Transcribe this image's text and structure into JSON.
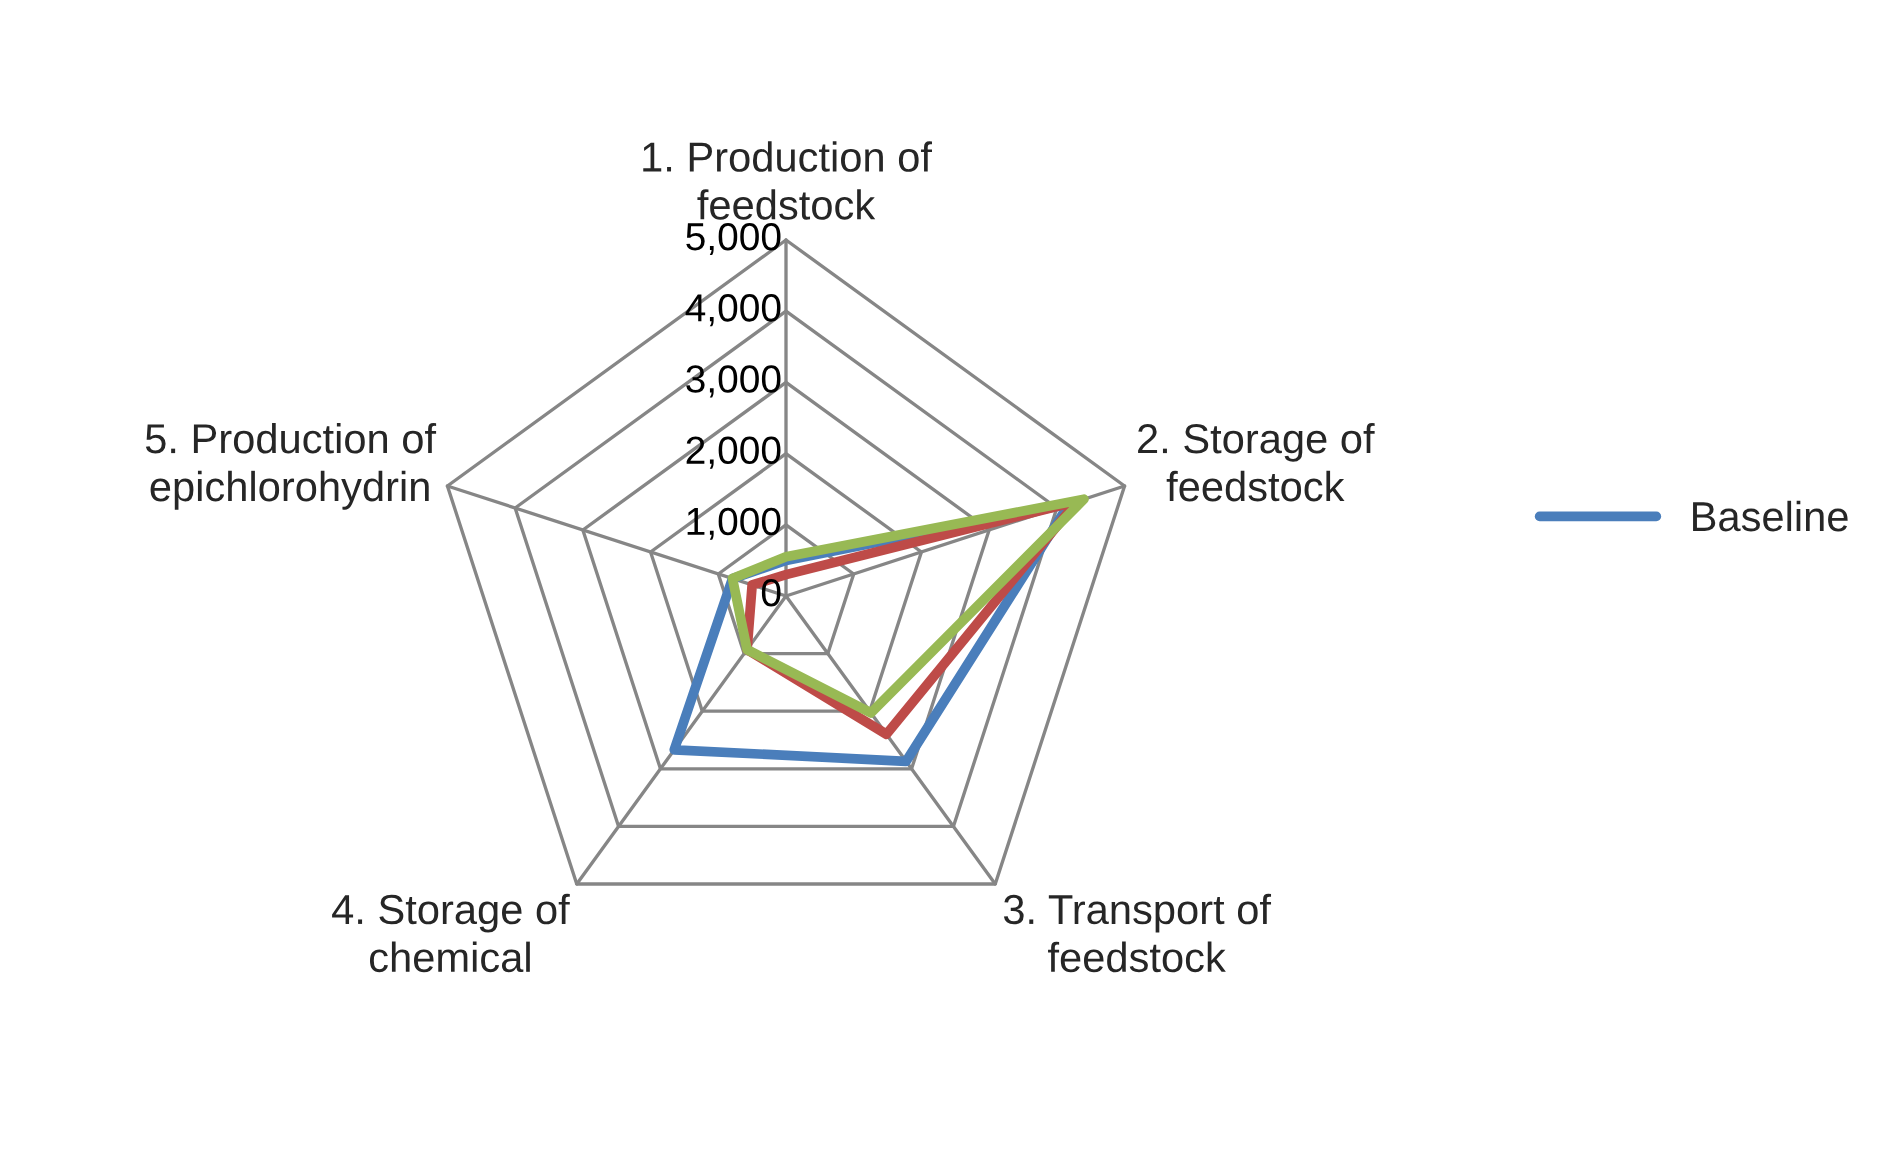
{
  "chart_data": {
    "type": "radar",
    "categories": [
      "1. Production of\nfeedstock",
      "2. Storage of\nfeedstock",
      "3. Transport of\nfeedstock",
      "4. Storage of\nchemical",
      "5. Production of\nepichlorohydrin"
    ],
    "series": [
      {
        "name": "Baseline",
        "color": "#4a7ebb",
        "values": [
          500,
          4180,
          2870,
          2670,
          790
        ]
      },
      {
        "color": "#be4b48",
        "values": [
          300,
          4300,
          2400,
          930,
          500
        ]
      },
      {
        "color": "#98b954",
        "values": [
          550,
          4400,
          2030,
          930,
          790
        ]
      }
    ],
    "ylim": [
      0,
      5000
    ],
    "yticks": [
      {
        "value": 0,
        "label": "0"
      },
      {
        "value": 1000,
        "label": "1,000"
      },
      {
        "value": 2000,
        "label": "2,000"
      },
      {
        "value": 3000,
        "label": "3,000"
      },
      {
        "value": 4000,
        "label": "4,000"
      },
      {
        "value": 5000,
        "label": "5,000"
      }
    ],
    "grid": true,
    "legend": "right",
    "marker": "none",
    "line_style": "solid"
  }
}
